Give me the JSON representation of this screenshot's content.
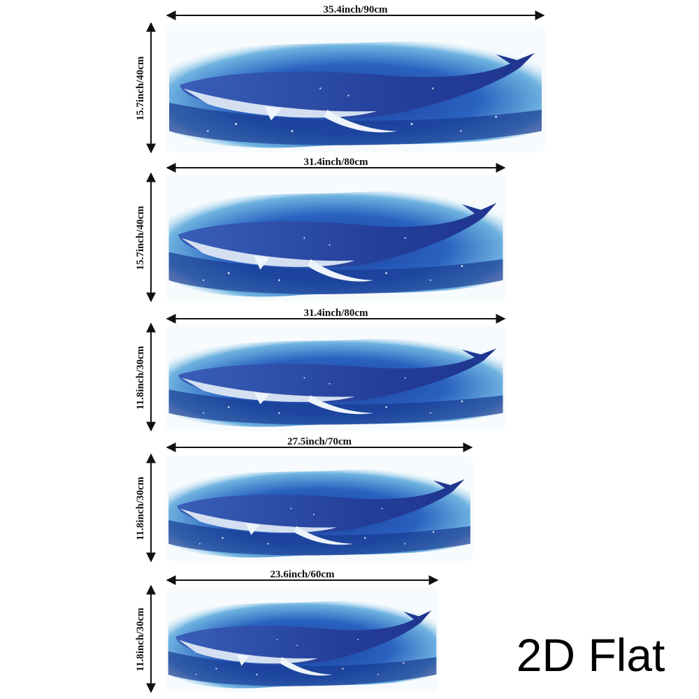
{
  "items": [
    {
      "width": "35.4inch/90cm",
      "height": "15.7inch/40cm"
    },
    {
      "width": "31.4inch/80cm",
      "height": "15.7inch/40cm"
    },
    {
      "width": "31.4inch/80cm",
      "height": "11.8inch/30cm"
    },
    {
      "width": "27.5inch/70cm",
      "height": "11.8inch/30cm"
    },
    {
      "width": "23.6inch/60cm",
      "height": "11.8inch/30cm"
    }
  ],
  "caption": "2D Flat"
}
